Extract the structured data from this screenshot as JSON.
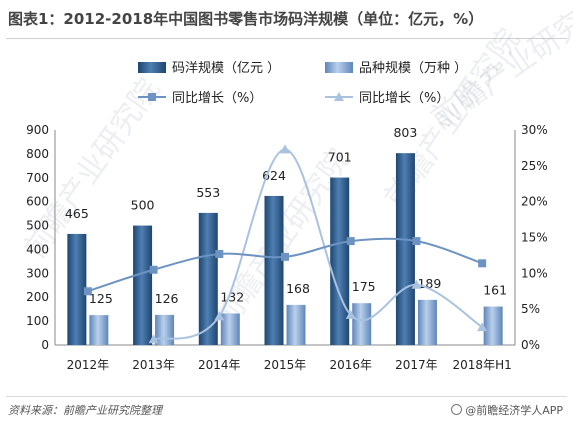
{
  "title": "图表1：2012-2018年中国图书零售市场码洋规模（单位：亿元，%）",
  "source": "资料来源：前瞻产业研究院整理",
  "brand": "@前瞻经济学人APP",
  "watermark": "前瞻产业研究院",
  "chart_data": {
    "type": "bar",
    "categories": [
      "2012年",
      "2013年",
      "2014年",
      "2015年",
      "2016年",
      "2017年",
      "2018年H1"
    ],
    "series": [
      {
        "name": "码洋规模（亿元 ）",
        "kind": "bar",
        "axis": "left",
        "color": "#2e5d8f",
        "values": [
          465,
          500,
          553,
          624,
          701,
          803,
          null
        ]
      },
      {
        "name": "品种规模（万种 ）",
        "kind": "bar",
        "axis": "left",
        "color": "#7fa6d6",
        "values": [
          125,
          126,
          132,
          168,
          175,
          189,
          161
        ]
      },
      {
        "name": "同比增长（%）",
        "kind": "line",
        "marker": "square",
        "axis": "right",
        "color": "#6d93c2",
        "values": [
          7.5,
          10.5,
          12.7,
          12.3,
          14.5,
          14.5,
          11.4
        ]
      },
      {
        "name": "同比增长（%）",
        "kind": "line",
        "marker": "triangle",
        "axis": "right",
        "color": "#a9c2e0",
        "values": [
          null,
          0.8,
          4.0,
          27.3,
          4.2,
          8.4,
          2.5
        ]
      }
    ],
    "value_labels": {
      "码洋": [
        "465",
        "500",
        "553",
        "624",
        "701",
        "803",
        ""
      ],
      "品种": [
        "125",
        "126",
        "132",
        "168",
        "175",
        "189",
        "161"
      ]
    },
    "y_left": {
      "ylim": [
        0,
        900
      ],
      "ticks": [
        "0",
        "100",
        "200",
        "300",
        "400",
        "500",
        "600",
        "700",
        "800",
        "900"
      ]
    },
    "y_right": {
      "ylim": [
        0,
        30
      ],
      "ticks": [
        "0%",
        "5%",
        "10%",
        "15%",
        "20%",
        "25%",
        "30%"
      ]
    },
    "legend_position": "top"
  }
}
